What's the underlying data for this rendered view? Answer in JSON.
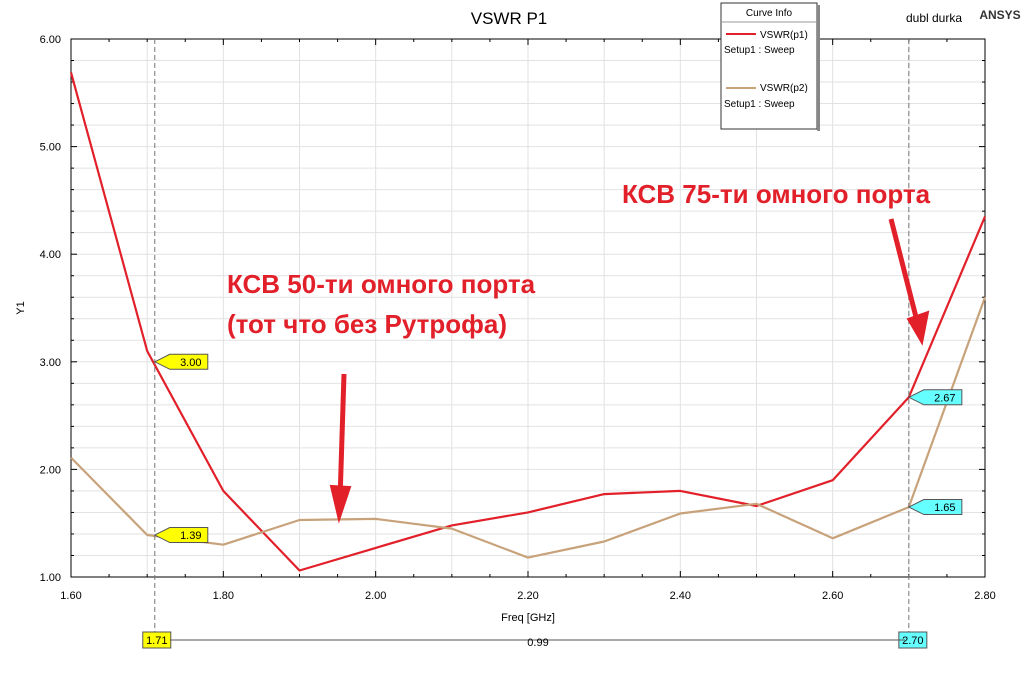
{
  "chart_data": {
    "type": "line",
    "title": "VSWR P1",
    "xlabel": "Freq [GHz]",
    "ylabel": "Y1",
    "xlim": [
      1.6,
      2.8
    ],
    "ylim": [
      1.0,
      6.0
    ],
    "grid": true,
    "x_ticks": [
      "1.60",
      "1.80",
      "2.00",
      "2.20",
      "2.40",
      "2.60",
      "2.80"
    ],
    "y_ticks": [
      "1.00",
      "2.00",
      "3.00",
      "4.00",
      "5.00",
      "6.00"
    ],
    "series": [
      {
        "name": "VSWR(p1)",
        "setup": "Setup1 : Sweep",
        "color": "#e2202a",
        "x": [
          1.6,
          1.7,
          1.8,
          1.9,
          2.0,
          2.1,
          2.2,
          2.3,
          2.4,
          2.5,
          2.6,
          2.7,
          2.8
        ],
        "y": [
          5.69,
          3.1,
          1.8,
          1.06,
          1.27,
          1.48,
          1.6,
          1.77,
          1.8,
          1.66,
          1.9,
          2.67,
          4.35
        ]
      },
      {
        "name": "VSWR(p2)",
        "setup": "Setup1 : Sweep",
        "color": "#c8a27a",
        "x": [
          1.6,
          1.7,
          1.8,
          1.9,
          2.0,
          2.1,
          2.2,
          2.3,
          2.4,
          2.5,
          2.6,
          2.7,
          2.8
        ],
        "y": [
          2.11,
          1.39,
          1.3,
          1.53,
          1.54,
          1.45,
          1.18,
          1.33,
          1.59,
          1.68,
          1.36,
          1.65,
          3.6
        ]
      }
    ],
    "markers": [
      {
        "x": 1.71,
        "label": "1.71",
        "color": "#ffff00"
      },
      {
        "x": 2.7,
        "label": "2.70",
        "color": "#66ffff"
      }
    ],
    "marker_values": [
      {
        "x": 1.71,
        "y": 3.0,
        "label": "3.00",
        "color": "#ffff00"
      },
      {
        "x": 1.71,
        "y": 1.39,
        "label": "1.39",
        "color": "#ffff00"
      },
      {
        "x": 2.7,
        "y": 2.67,
        "label": "2.67",
        "color": "#66ffff"
      },
      {
        "x": 2.7,
        "y": 1.65,
        "label": "1.65",
        "color": "#66ffff"
      }
    ],
    "delta_label": "0.99",
    "legend": {
      "title": "Curve Info",
      "placement": "top-right"
    },
    "project_name": "dubl durka",
    "brand": "ANSYS",
    "annotations": [
      {
        "lines": [
          "КСВ 50-ти омного порта",
          "(тот что без Рутрофа)"
        ]
      },
      {
        "lines": [
          "КСВ 75-ти омного порта"
        ]
      }
    ]
  }
}
